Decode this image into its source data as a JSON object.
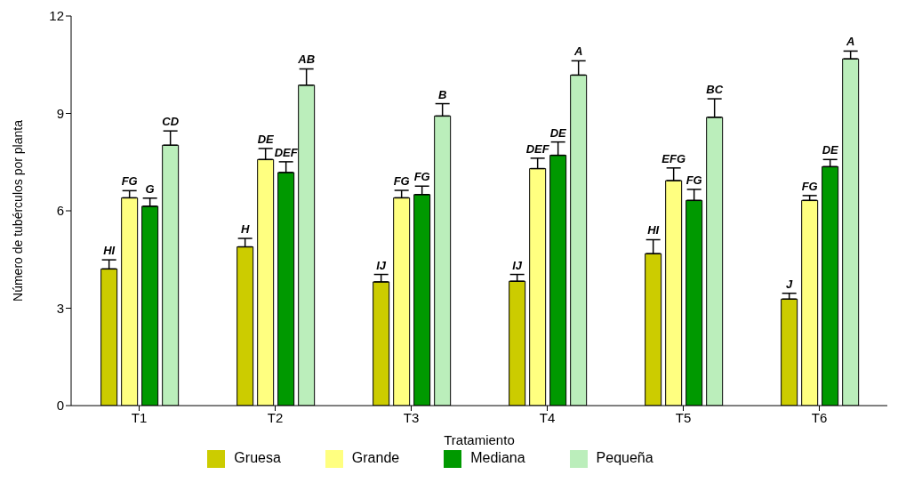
{
  "chart_data": {
    "type": "bar",
    "xlabel": "Tratamiento",
    "ylabel": "Número de tubérculos por planta",
    "categories": [
      "T1",
      "T2",
      "T3",
      "T4",
      "T5",
      "T6"
    ],
    "series": [
      {
        "name": "Gruesa",
        "color": "#cccc00",
        "values": [
          4.21,
          4.89,
          3.81,
          3.83,
          4.68,
          3.28
        ],
        "errors": [
          [
            4.21,
            4.49
          ],
          [
            4.89,
            5.15
          ],
          [
            3.81,
            4.04
          ],
          [
            3.83,
            4.04
          ],
          [
            4.68,
            5.11
          ],
          [
            3.28,
            3.46
          ]
        ],
        "value_labels": [
          "HI",
          "H",
          "IJ",
          "IJ",
          "HI",
          "J"
        ]
      },
      {
        "name": "Grande",
        "color": "#ffff80",
        "values": [
          6.4,
          7.58,
          6.4,
          7.3,
          6.93,
          6.32
        ],
        "errors": [
          [
            6.4,
            6.62
          ],
          [
            7.58,
            7.92
          ],
          [
            6.4,
            6.63
          ],
          [
            7.3,
            7.62
          ],
          [
            6.93,
            7.32
          ],
          [
            6.32,
            6.47
          ]
        ],
        "value_labels": [
          "FG",
          "DE",
          "FG",
          "DEF",
          "EFG",
          "FG"
        ]
      },
      {
        "name": "Mediana",
        "color": "#009900",
        "values": [
          6.14,
          7.18,
          6.5,
          7.71,
          6.32,
          7.36
        ],
        "errors": [
          [
            6.14,
            6.39
          ],
          [
            7.18,
            7.51
          ],
          [
            6.5,
            6.76
          ],
          [
            7.71,
            8.12
          ],
          [
            6.32,
            6.66
          ],
          [
            7.36,
            7.58
          ]
        ],
        "value_labels": [
          "G",
          "DEF",
          "FG",
          "DE",
          "FG",
          "DE"
        ]
      },
      {
        "name": "Pequeña",
        "color": "#bbeebb",
        "values": [
          8.02,
          9.87,
          8.92,
          10.18,
          8.88,
          10.68
        ],
        "errors": [
          [
            8.02,
            8.46
          ],
          [
            9.87,
            10.37
          ],
          [
            8.92,
            9.3
          ],
          [
            10.18,
            10.62
          ],
          [
            8.88,
            9.45
          ],
          [
            10.68,
            10.92
          ]
        ],
        "value_labels": [
          "CD",
          "AB",
          "B",
          "A",
          "BC",
          "A"
        ]
      }
    ],
    "ylim": [
      0,
      12
    ],
    "yticks": [
      0,
      3,
      6,
      9,
      12
    ],
    "grid": false,
    "legend": "bottom"
  }
}
